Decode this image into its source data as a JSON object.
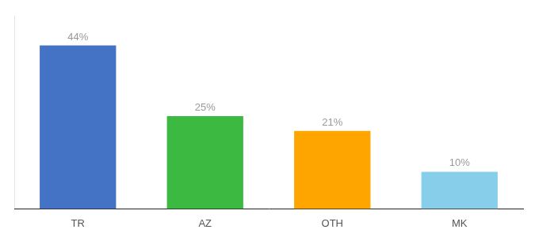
{
  "chart_data": {
    "type": "bar",
    "categories": [
      "TR",
      "AZ",
      "OTH",
      "MK"
    ],
    "values": [
      44,
      25,
      21,
      10
    ],
    "value_labels": [
      "44%",
      "25%",
      "21%",
      "10%"
    ],
    "colors": [
      "#4472C4",
      "#3CB941",
      "#FFA500",
      "#87CEEB"
    ],
    "ylim": [
      0,
      52
    ],
    "grid": false,
    "tick_labels": "x",
    "data_labels": true
  }
}
